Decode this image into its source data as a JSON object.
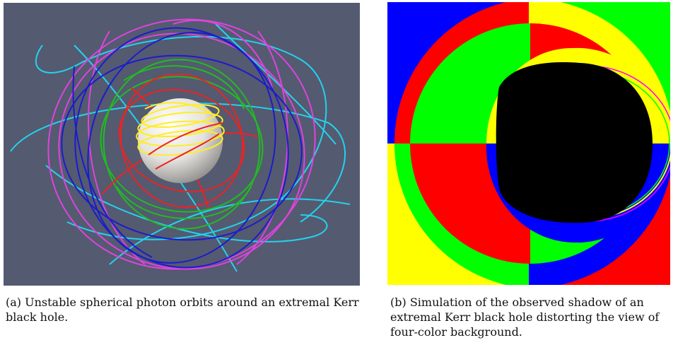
{
  "figure_a": {
    "caption": "(a) Unstable spherical photon orbits around an extremal Kerr black hole.",
    "background_color": "#545a70",
    "sphere_color": "#ededed",
    "orbit_colors": [
      "#22d3ee",
      "#dd44dd",
      "#1c1ccc",
      "#22bb22",
      "#ee2222",
      "#ffee22"
    ]
  },
  "figure_b": {
    "caption": "(b) Simulation of the observed shadow of an extremal Kerr black hole distorting the view of four-color background.",
    "quadrant_colors": {
      "outer_top_left": "#0000ff",
      "outer_top_right": "#00ff00",
      "outer_bottom_left": "#ffff00",
      "outer_bottom_right": "#ff0000"
    },
    "shadow_color": "#000000"
  }
}
